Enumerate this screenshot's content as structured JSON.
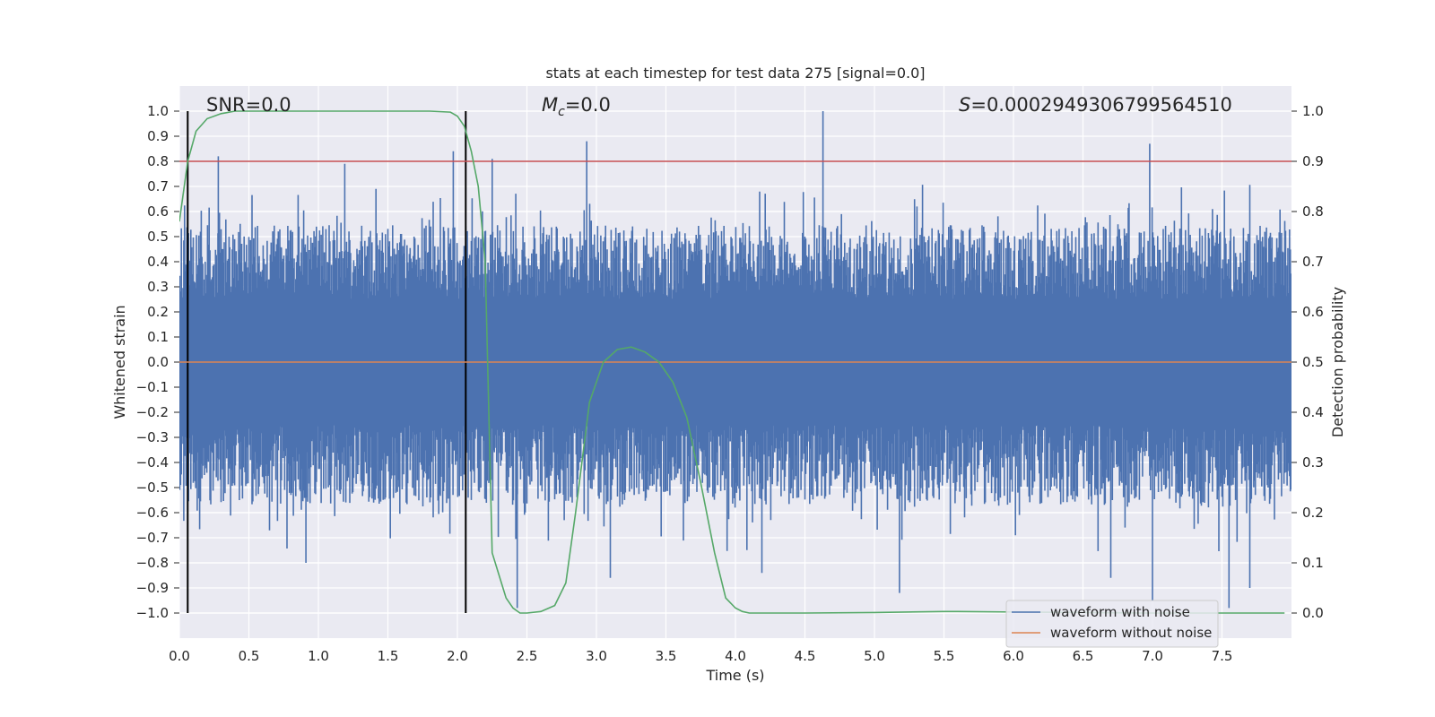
{
  "chart_data": {
    "type": "line",
    "title": "stats at each timestep for test data 275 [signal=0.0]",
    "xlabel": "Time (s)",
    "ylabel": "Whitened strain",
    "y2label": "Detection probability",
    "xlim": [
      0.0,
      8.0
    ],
    "ylim": [
      -1.1,
      1.1
    ],
    "y2lim": [
      -0.05,
      1.05
    ],
    "xticks": [
      "0.0",
      "0.5",
      "1.0",
      "1.5",
      "2.0",
      "2.5",
      "3.0",
      "3.5",
      "4.0",
      "4.5",
      "5.0",
      "5.5",
      "6.0",
      "6.5",
      "7.0",
      "7.5"
    ],
    "yticks": [
      "1.0",
      "0.9",
      "0.8",
      "0.7",
      "0.6",
      "0.5",
      "0.4",
      "0.3",
      "0.2",
      "0.1",
      "0.0",
      "−0.1",
      "−0.2",
      "−0.3",
      "−0.4",
      "−0.5",
      "−0.6",
      "−0.7",
      "−0.8",
      "−0.9",
      "−1.0"
    ],
    "y2ticks": [
      "1.0",
      "0.9",
      "0.8",
      "0.7",
      "0.6",
      "0.5",
      "0.4",
      "0.3",
      "0.2",
      "0.1",
      "0.0"
    ],
    "grid": true,
    "legend_position": "lower-right",
    "annotations": {
      "snr": "SNR=0.0",
      "mc_symbol": "M",
      "mc_sub": "c",
      "mc_value": "=0.0",
      "s_symbol": "S",
      "s_value": "=0.0002949306799564510"
    },
    "threshold_line": {
      "y": 0.8,
      "color": "#c44e52"
    },
    "vertical_markers": [
      0.06,
      2.06
    ],
    "series": [
      {
        "name": "waveform with noise",
        "color": "#4c72b0",
        "axis": "left",
        "kind": "noise",
        "sample_count": 1400,
        "envelope": {
          "positive_max": 1.0,
          "negative_min": -0.98,
          "typical_abs": 0.42
        },
        "notable_spikes": [
          [
            0.28,
            0.82
          ],
          [
            1.19,
            0.79
          ],
          [
            1.97,
            0.84
          ],
          [
            2.25,
            0.81
          ],
          [
            2.93,
            0.88
          ],
          [
            4.63,
            1.0
          ],
          [
            6.98,
            0.87
          ],
          [
            0.91,
            -0.8
          ],
          [
            2.43,
            -0.98
          ],
          [
            3.1,
            -0.86
          ],
          [
            4.19,
            -0.84
          ],
          [
            5.18,
            -0.92
          ],
          [
            6.7,
            -0.86
          ],
          [
            7.0,
            -0.95
          ],
          [
            7.55,
            -0.98
          ],
          [
            7.7,
            -0.9
          ]
        ]
      },
      {
        "name": "waveform without noise",
        "color": "#dd8452",
        "axis": "left",
        "x": [
          0.0,
          8.0
        ],
        "values": [
          0.0,
          0.0
        ]
      },
      {
        "name": "detection probability",
        "color": "#55a868",
        "axis": "right",
        "x": [
          0.0,
          0.06,
          0.12,
          0.2,
          0.3,
          0.4,
          0.6,
          1.0,
          1.5,
          1.8,
          1.95,
          2.0,
          2.05,
          2.1,
          2.15,
          2.2,
          2.25,
          2.35,
          2.4,
          2.45,
          2.5,
          2.6,
          2.7,
          2.78,
          2.85,
          2.95,
          3.05,
          3.15,
          3.25,
          3.35,
          3.45,
          3.55,
          3.65,
          3.75,
          3.85,
          3.93,
          4.0,
          4.05,
          4.1,
          4.2,
          4.5,
          5.0,
          5.5,
          5.6,
          6.0,
          6.5,
          7.0,
          7.5,
          7.95
        ],
        "values": [
          0.78,
          0.9,
          0.96,
          0.985,
          0.995,
          1.0,
          1.0,
          1.0,
          1.0,
          1.0,
          0.998,
          0.99,
          0.97,
          0.92,
          0.85,
          0.7,
          0.12,
          0.03,
          0.01,
          0.0,
          0.0,
          0.003,
          0.015,
          0.06,
          0.2,
          0.42,
          0.5,
          0.525,
          0.53,
          0.52,
          0.5,
          0.46,
          0.39,
          0.26,
          0.12,
          0.03,
          0.01,
          0.003,
          0.0,
          0.0,
          0.0,
          0.001,
          0.003,
          0.003,
          0.002,
          0.001,
          0.0,
          0.0,
          0.0
        ]
      }
    ]
  }
}
